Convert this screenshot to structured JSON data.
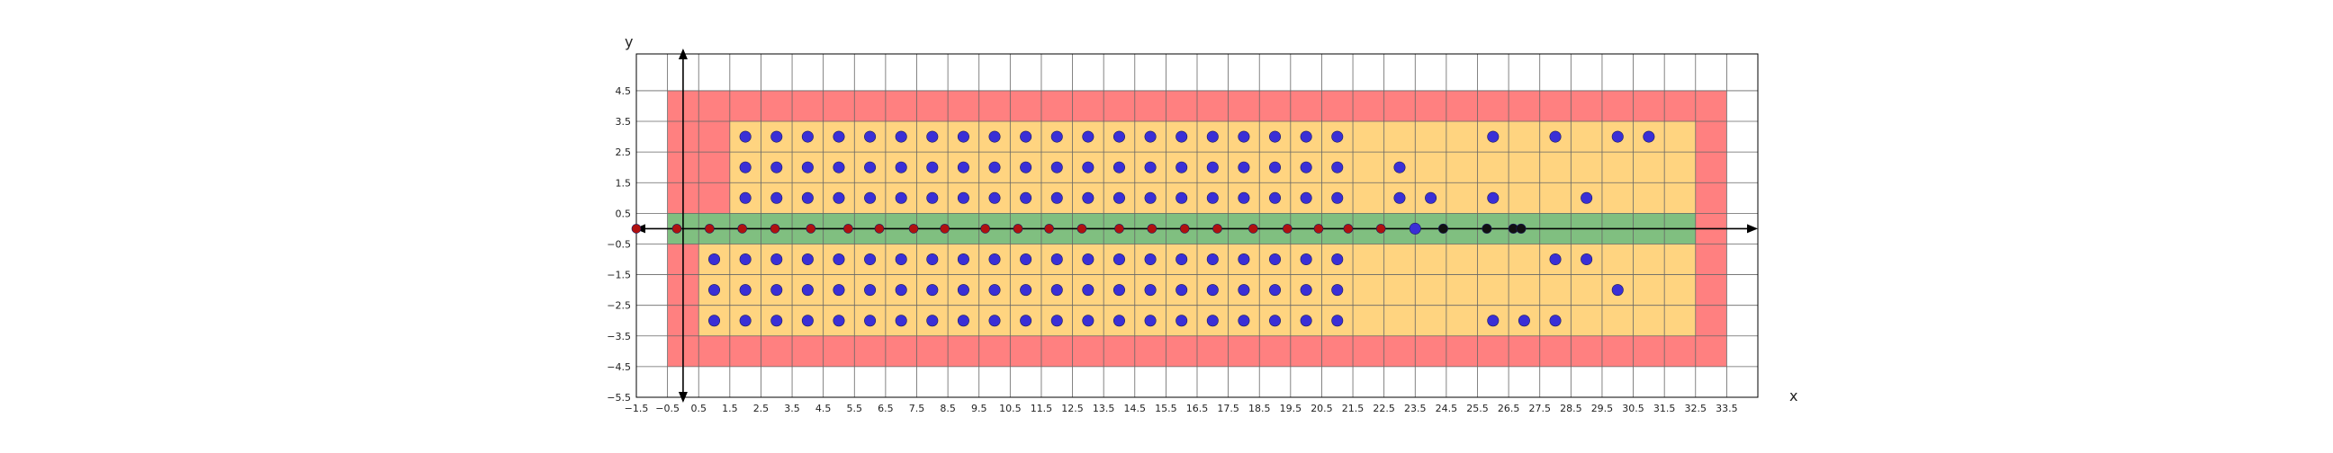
{
  "chart_data": {
    "type": "scatter",
    "title": "",
    "xlabel": "x",
    "ylabel": "y",
    "xlim": [
      -1.5,
      34.5
    ],
    "ylim": [
      -5.5,
      5.7
    ],
    "grid": true,
    "x_ticks": [
      -1.5,
      -0.5,
      0.5,
      1.5,
      2.5,
      3.5,
      4.5,
      5.5,
      6.5,
      7.5,
      8.5,
      9.5,
      10.5,
      11.5,
      12.5,
      13.5,
      14.5,
      15.5,
      16.5,
      17.5,
      18.5,
      19.5,
      20.5,
      21.5,
      22.5,
      23.5,
      24.5,
      25.5,
      26.5,
      27.5,
      28.5,
      29.5,
      30.5,
      31.5,
      32.5,
      33.5
    ],
    "x_tick_labels": [
      "−1.5",
      "−0.5",
      "0.5",
      "1.5",
      "2.5",
      "3.5",
      "4.5",
      "5.5",
      "6.5",
      "7.5",
      "8.5",
      "9.5",
      "10.5",
      "11.5",
      "12.5",
      "13.5",
      "14.5",
      "15.5",
      "16.5",
      "17.5",
      "18.5",
      "19.5",
      "20.5",
      "21.5",
      "22.5",
      "23.5",
      "24.5",
      "25.5",
      "26.5",
      "27.5",
      "28.5",
      "29.5",
      "30.5",
      "31.5",
      "32.5",
      "33.5"
    ],
    "y_ticks": [
      4.5,
      3.5,
      2.5,
      1.5,
      0.5,
      -0.5,
      -1.5,
      -2.5,
      -3.5,
      -4.5,
      -5.5
    ],
    "y_tick_labels": [
      "4.5",
      "3.5",
      "2.5",
      "1.5",
      "0.5",
      "−0.5",
      "−1.5",
      "−2.5",
      "−3.5",
      "−4.5",
      "−5.5"
    ],
    "regions": [
      {
        "role": "outer",
        "color": "#ff8080",
        "x": [
          -0.5,
          33.5
        ],
        "y": [
          -4.5,
          4.5
        ]
      },
      {
        "role": "upper-inner",
        "color": "#ffd480",
        "x": [
          1.5,
          32.5
        ],
        "y": [
          0.5,
          3.5
        ]
      },
      {
        "role": "lower-inner",
        "color": "#ffd480",
        "x": [
          0.5,
          32.5
        ],
        "y": [
          -3.5,
          -0.5
        ]
      },
      {
        "role": "axis-band",
        "color": "#80bf80",
        "x": [
          -0.5,
          32.5
        ],
        "y": [
          -0.5,
          0.5
        ]
      }
    ],
    "point_groups": [
      {
        "role": "blue-grid-upper",
        "color": "#3a2fd6",
        "x_range": [
          2,
          21
        ],
        "y_values": [
          1,
          2,
          3
        ]
      },
      {
        "role": "blue-grid-lower",
        "color": "#3a2fd6",
        "x_range": [
          1,
          21
        ],
        "y_values": [
          -1,
          -2,
          -3
        ]
      }
    ],
    "extra_blue_points": [
      [
        23,
        2
      ],
      [
        23,
        1
      ],
      [
        24,
        1
      ],
      [
        26,
        3
      ],
      [
        26,
        1
      ],
      [
        28,
        3
      ],
      [
        29,
        1
      ],
      [
        30,
        3
      ],
      [
        31,
        3
      ],
      [
        28,
        -1
      ],
      [
        29,
        -1
      ],
      [
        30,
        -2
      ],
      [
        26,
        -3
      ],
      [
        27,
        -3
      ],
      [
        28,
        -3
      ],
      [
        23.5,
        0
      ]
    ],
    "red_points": {
      "color": "#b01010",
      "points": [
        [
          -1.5,
          0
        ],
        [
          -0.2,
          0
        ],
        [
          0.85,
          0
        ],
        [
          1.9,
          0
        ],
        [
          2.95,
          0
        ],
        [
          4.1,
          0
        ],
        [
          5.3,
          0
        ],
        [
          6.3,
          0
        ],
        [
          7.4,
          0
        ],
        [
          8.4,
          0
        ],
        [
          9.7,
          0
        ],
        [
          10.75,
          0
        ],
        [
          11.75,
          0
        ],
        [
          12.8,
          0
        ],
        [
          14,
          0
        ],
        [
          15.05,
          0
        ],
        [
          16.1,
          0
        ],
        [
          17.15,
          0
        ],
        [
          18.3,
          0
        ],
        [
          19.4,
          0
        ],
        [
          20.4,
          0
        ],
        [
          21.35,
          0
        ],
        [
          22.4,
          0
        ]
      ]
    },
    "black_points": {
      "color": "#111111",
      "points": [
        [
          24.4,
          0
        ],
        [
          25.8,
          0
        ],
        [
          26.65,
          0
        ],
        [
          26.9,
          0
        ]
      ]
    }
  }
}
